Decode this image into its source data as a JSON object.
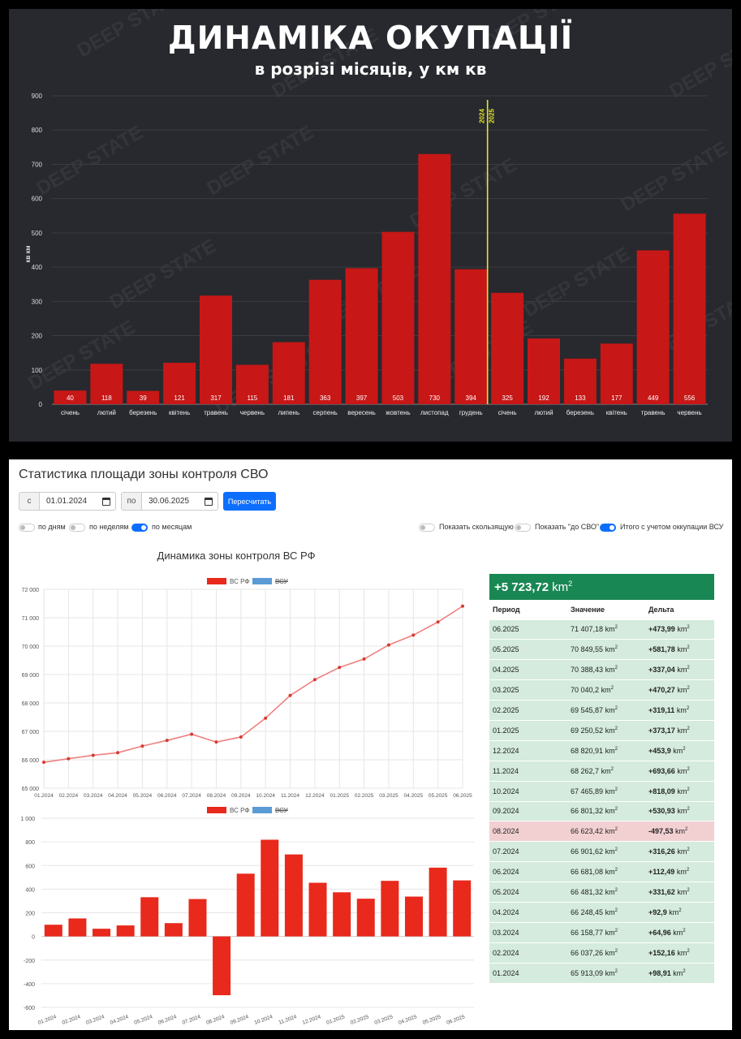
{
  "top_panel": {
    "title": "ДИНАМІКА ОКУПАЦІЇ",
    "subtitle": "в розрізі місяців, у км кв",
    "watermark": "DEEP STATE"
  },
  "bottom_panel": {
    "header": "Статистика площади зоны контроля СВО",
    "date_from_label": "с",
    "date_from_value": "01.01.2024",
    "date_to_label": "по",
    "date_to_value": "30.06.2025",
    "recalc_button": "Пересчитать",
    "toggles": [
      {
        "label": "по дням",
        "on": false
      },
      {
        "label": "по неделям",
        "on": false
      },
      {
        "label": "по месяцам",
        "on": true
      },
      {
        "label": "Показать скользящую",
        "on": false
      },
      {
        "label": "Показать \"до СВО\"",
        "on": false
      },
      {
        "label": "Итого с учетом оккупации ВСУ",
        "on": true
      }
    ],
    "chart_title": "Динамика зоны контроля ВС РФ",
    "summary": {
      "value": "+5 723,72",
      "unit": "km",
      "unit_sup": "2"
    },
    "table": {
      "headers": [
        "Период",
        "Значение",
        "Дельта"
      ],
      "unit": "km",
      "unit_sup": "2",
      "rows": [
        {
          "period": "06.2025",
          "value": "71 407,18",
          "delta": "+473,99"
        },
        {
          "period": "05.2025",
          "value": "70 849,55",
          "delta": "+581,78"
        },
        {
          "period": "04.2025",
          "value": "70 388,43",
          "delta": "+337,04"
        },
        {
          "period": "03.2025",
          "value": "70 040,2",
          "delta": "+470,27"
        },
        {
          "period": "02.2025",
          "value": "69 545,87",
          "delta": "+319,11"
        },
        {
          "period": "01.2025",
          "value": "69 250,52",
          "delta": "+373,17"
        },
        {
          "period": "12.2024",
          "value": "68 820,91",
          "delta": "+453,9"
        },
        {
          "period": "11.2024",
          "value": "68 262,7",
          "delta": "+693,66"
        },
        {
          "period": "10.2024",
          "value": "67 465,89",
          "delta": "+818,09"
        },
        {
          "period": "09.2024",
          "value": "66 801,32",
          "delta": "+530,93"
        },
        {
          "period": "08.2024",
          "value": "66 623,42",
          "delta": "-497,53"
        },
        {
          "period": "07.2024",
          "value": "66 901,62",
          "delta": "+316,26"
        },
        {
          "period": "06.2024",
          "value": "66 681,08",
          "delta": "+112,49"
        },
        {
          "period": "05.2024",
          "value": "66 481,32",
          "delta": "+331,62"
        },
        {
          "period": "04.2024",
          "value": "66 248,45",
          "delta": "+92,9"
        },
        {
          "period": "03.2024",
          "value": "66 158,77",
          "delta": "+64,96"
        },
        {
          "period": "02.2024",
          "value": "66 037,26",
          "delta": "+152,16"
        },
        {
          "period": "01.2024",
          "value": "65 913,09",
          "delta": "+98,91"
        }
      ]
    }
  },
  "chart_data": [
    {
      "type": "bar",
      "title": "ДИНАМІКА ОКУПАЦІЇ",
      "subtitle": "в розрізі місяців, у км кв",
      "ylabel": "кв км",
      "categories": [
        "січень",
        "лютий",
        "березень",
        "квітень",
        "травень",
        "червень",
        "липень",
        "серпень",
        "вересень",
        "жовтень",
        "листопад",
        "грудень",
        "січень",
        "лютий",
        "березень",
        "квітень",
        "травень",
        "червень"
      ],
      "values": [
        40,
        118,
        39,
        121,
        317,
        115,
        181,
        363,
        397,
        503,
        730,
        394,
        325,
        192,
        133,
        177,
        449,
        556
      ],
      "ylim": [
        0,
        900
      ],
      "yticks": [
        0,
        100,
        200,
        300,
        400,
        500,
        600,
        700,
        800,
        900
      ],
      "divider_labels": [
        "2024",
        "2025"
      ],
      "bar_color": "#c71717",
      "divider_color": "#e6e62e"
    },
    {
      "type": "line",
      "legend": [
        "ВС РФ",
        "ВСУ"
      ],
      "legend_colors": [
        "#e8291c",
        "#5b9bd5"
      ],
      "categories": [
        "01.2024",
        "02.2024",
        "03.2024",
        "04.2024",
        "05.2024",
        "06.2024",
        "07.2024",
        "08.2024",
        "09.2024",
        "10.2024",
        "11.2024",
        "12.2024",
        "01.2025",
        "02.2025",
        "03.2025",
        "04.2025",
        "05.2025",
        "06.2025"
      ],
      "series": [
        {
          "name": "ВС РФ",
          "values": [
            65913.09,
            66037.26,
            66158.77,
            66248.45,
            66481.32,
            66681.08,
            66901.62,
            66623.42,
            66801.32,
            67465.89,
            68262.7,
            68820.91,
            69250.52,
            69545.87,
            70040.2,
            70388.43,
            70849.55,
            71407.18
          ]
        }
      ],
      "ylim": [
        65000,
        72000
      ],
      "yticks": [
        65000,
        66000,
        67000,
        68000,
        69000,
        70000,
        71000,
        72000
      ],
      "ytick_labels": [
        "65 000",
        "66 000",
        "67 000",
        "68 000",
        "69 000",
        "70 000",
        "71 000",
        "72 000"
      ]
    },
    {
      "type": "bar",
      "legend": [
        "ВС РФ",
        "ВСУ"
      ],
      "legend_colors": [
        "#e8291c",
        "#5b9bd5"
      ],
      "categories": [
        "01.2024",
        "02.2024",
        "03.2024",
        "04.2024",
        "05.2024",
        "06.2024",
        "07.2024",
        "08.2024",
        "09.2024",
        "10.2024",
        "11.2024",
        "12.2024",
        "01.2025",
        "02.2025",
        "03.2025",
        "04.2025",
        "05.2025",
        "06.2025"
      ],
      "series": [
        {
          "name": "ВС РФ",
          "values": [
            98.91,
            152.16,
            64.96,
            92.9,
            331.62,
            112.49,
            316.26,
            -497.53,
            530.93,
            818.09,
            693.66,
            453.9,
            373.17,
            319.11,
            470.27,
            337.04,
            581.78,
            473.99
          ]
        }
      ],
      "ylim": [
        -600,
        1000
      ],
      "yticks": [
        -600,
        -400,
        -200,
        0,
        200,
        400,
        600,
        800,
        1000
      ],
      "ytick_labels": [
        "-600",
        "-400",
        "-200",
        "0",
        "200",
        "400",
        "600",
        "800",
        "1 000"
      ]
    }
  ]
}
